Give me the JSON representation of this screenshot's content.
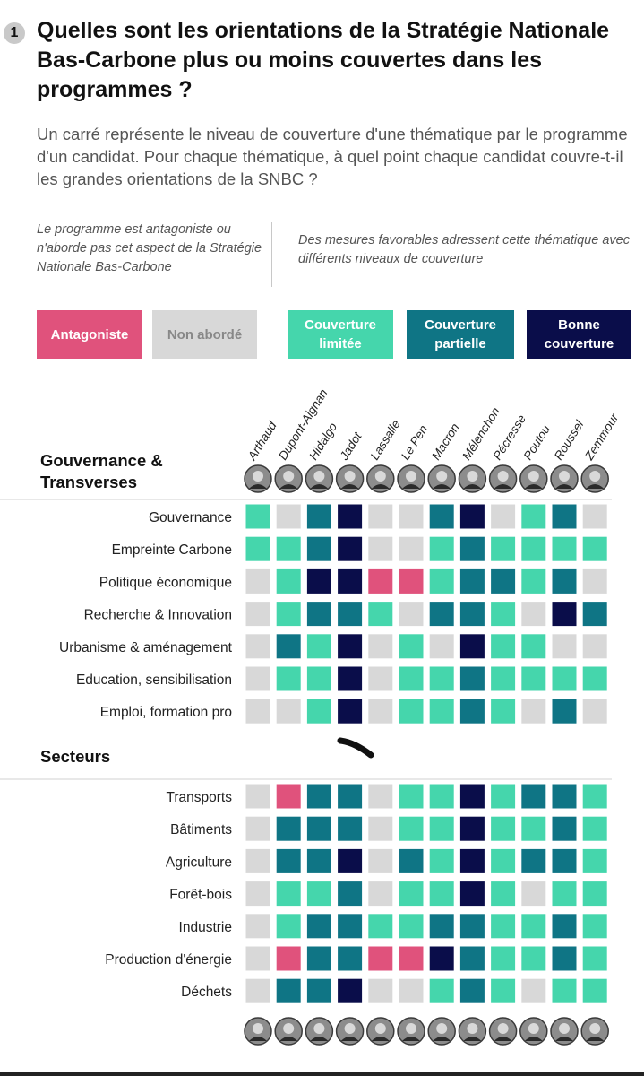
{
  "question_number": "1",
  "title": "Quelles sont les orientations de la Stratégie Nationale Bas-Carbone plus ou moins couvertes dans les programmes ?",
  "subtitle": "Un carré représente le niveau de couverture d'une thématique par le programme d'un candidat. Pour chaque thématique, à quel point chaque candidat couvre-t-il les grandes orientations de la SNBC ?",
  "legend": {
    "left_note": "Le programme est antagoniste ou n'aborde pas cet aspect de la Stratégie Nationale Bas-Carbone",
    "right_note": "Des mesures favorables adressent cette thématique avec différents niveaux de couverture",
    "levels": [
      {
        "key": "A",
        "label": "Antagoniste",
        "color": "#e0527c"
      },
      {
        "key": "N",
        "label": "Non abordé",
        "color": "#d8d8d8"
      },
      {
        "key": "L",
        "label": "Couverture limitée",
        "color": "#45d6ac"
      },
      {
        "key": "P",
        "label": "Couverture partielle",
        "color": "#0f7585"
      },
      {
        "key": "B",
        "label": "Bonne couverture",
        "color": "#0a0d4a"
      }
    ]
  },
  "chart_data": {
    "type": "heatmap",
    "x": [
      "Arthaud",
      "Dupont-Aignan",
      "Hidalgo",
      "Jadot",
      "Lassalle",
      "Le Pen",
      "Macron",
      "Mélenchon",
      "Pécresse",
      "Poutou",
      "Roussel",
      "Zemmour"
    ],
    "groups": [
      {
        "name": "Gouvernance & Transverses",
        "rows": [
          {
            "label": "Gouvernance",
            "values": [
              "L",
              "N",
              "P",
              "B",
              "N",
              "N",
              "P",
              "B",
              "N",
              "L",
              "P",
              "N"
            ]
          },
          {
            "label": "Empreinte Carbone",
            "values": [
              "L",
              "L",
              "P",
              "B",
              "N",
              "N",
              "L",
              "P",
              "L",
              "L",
              "L",
              "L"
            ]
          },
          {
            "label": "Politique économique",
            "values": [
              "N",
              "L",
              "B",
              "B",
              "A",
              "A",
              "L",
              "P",
              "P",
              "L",
              "P",
              "N"
            ]
          },
          {
            "label": "Recherche & Innovation",
            "values": [
              "N",
              "L",
              "P",
              "P",
              "L",
              "N",
              "P",
              "P",
              "L",
              "N",
              "B",
              "P"
            ]
          },
          {
            "label": "Urbanisme & aménagement",
            "values": [
              "N",
              "P",
              "L",
              "B",
              "N",
              "L",
              "N",
              "B",
              "L",
              "L",
              "N",
              "N"
            ]
          },
          {
            "label": "Education, sensibilisation",
            "values": [
              "N",
              "L",
              "L",
              "B",
              "N",
              "L",
              "L",
              "P",
              "L",
              "L",
              "L",
              "L"
            ]
          },
          {
            "label": "Emploi, formation pro",
            "values": [
              "N",
              "N",
              "L",
              "B",
              "N",
              "L",
              "L",
              "P",
              "L",
              "N",
              "P",
              "N"
            ]
          }
        ]
      },
      {
        "name": "Secteurs",
        "rows": [
          {
            "label": "Transports",
            "values": [
              "N",
              "A",
              "P",
              "P",
              "N",
              "L",
              "L",
              "B",
              "L",
              "P",
              "P",
              "L"
            ]
          },
          {
            "label": "Bâtiments",
            "values": [
              "N",
              "P",
              "P",
              "P",
              "N",
              "L",
              "L",
              "B",
              "L",
              "L",
              "P",
              "L"
            ]
          },
          {
            "label": "Agriculture",
            "values": [
              "N",
              "P",
              "P",
              "B",
              "N",
              "P",
              "L",
              "B",
              "L",
              "P",
              "P",
              "L"
            ]
          },
          {
            "label": "Forêt-bois",
            "values": [
              "N",
              "L",
              "L",
              "P",
              "N",
              "L",
              "L",
              "B",
              "L",
              "N",
              "L",
              "L"
            ]
          },
          {
            "label": "Industrie",
            "values": [
              "N",
              "L",
              "P",
              "P",
              "L",
              "L",
              "P",
              "P",
              "L",
              "L",
              "P",
              "L"
            ]
          },
          {
            "label": "Production d'énergie",
            "values": [
              "N",
              "A",
              "P",
              "P",
              "A",
              "A",
              "B",
              "P",
              "L",
              "L",
              "P",
              "L"
            ]
          },
          {
            "label": "Déchets",
            "values": [
              "N",
              "P",
              "P",
              "B",
              "N",
              "N",
              "L",
              "P",
              "L",
              "N",
              "L",
              "L"
            ]
          }
        ]
      }
    ]
  }
}
